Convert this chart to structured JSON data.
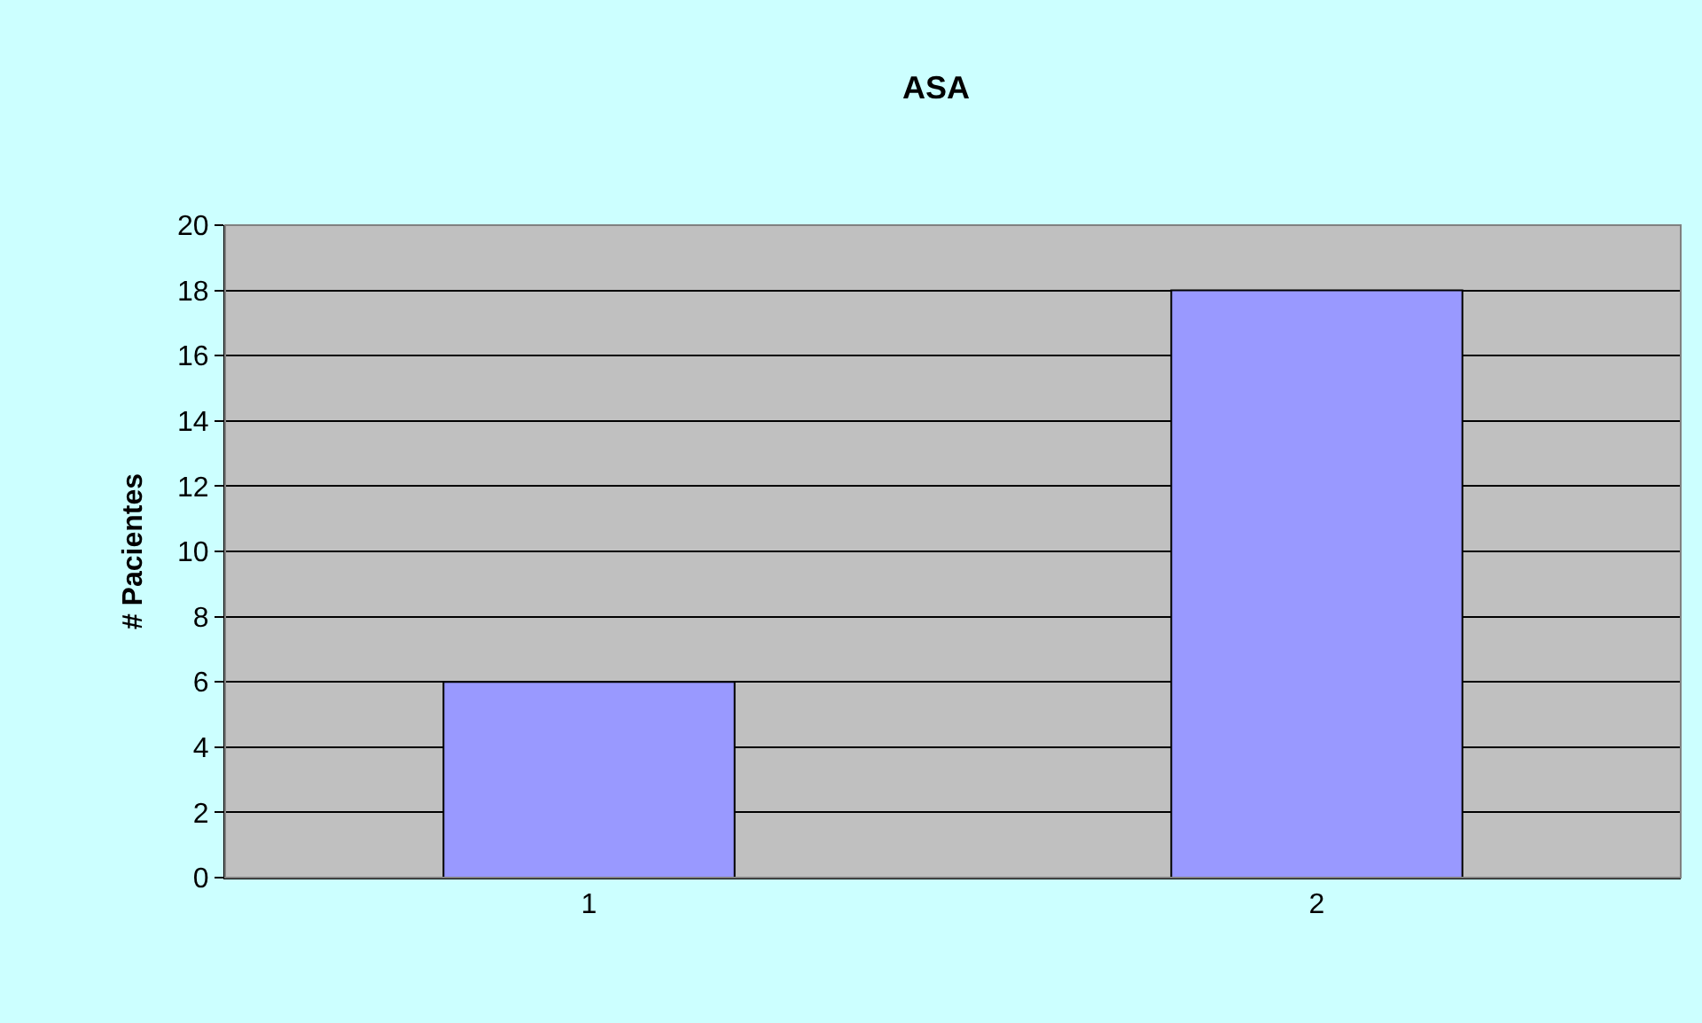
{
  "chart_data": {
    "type": "bar",
    "title": "ASA",
    "ylabel": "# Pacientes",
    "categories": [
      "1",
      "2"
    ],
    "values": [
      6,
      18
    ],
    "color": "#9999ff",
    "ylim": [
      0,
      20
    ],
    "yticks": [
      0,
      2,
      4,
      6,
      8,
      10,
      12,
      14,
      16,
      18,
      20
    ],
    "grid": "y",
    "legend": false
  }
}
